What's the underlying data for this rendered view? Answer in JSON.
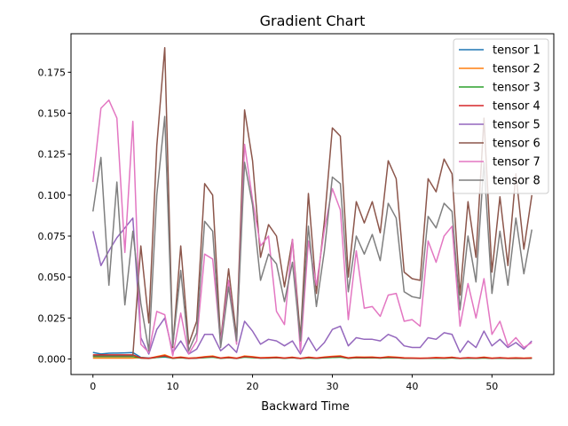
{
  "chart_data": {
    "type": "line",
    "title": "Gradient Chart",
    "xlabel": "Backward Time",
    "ylabel": "",
    "xlim": [
      -2.75,
      57.75
    ],
    "ylim": [
      -0.0095,
      0.1985
    ],
    "xticks": [
      0,
      10,
      20,
      30,
      40,
      50
    ],
    "xtick_labels": [
      "0",
      "10",
      "20",
      "30",
      "40",
      "50"
    ],
    "yticks": [
      0.0,
      0.025,
      0.05,
      0.075,
      0.1,
      0.125,
      0.15,
      0.175
    ],
    "ytick_labels": [
      "0.000",
      "0.025",
      "0.050",
      "0.075",
      "0.100",
      "0.125",
      "0.150",
      "0.175"
    ],
    "grid": false,
    "legend_position": "top-right",
    "x": [
      0,
      1,
      2,
      3,
      4,
      5,
      6,
      7,
      8,
      9,
      10,
      11,
      12,
      13,
      14,
      15,
      16,
      17,
      18,
      19,
      20,
      21,
      22,
      23,
      24,
      25,
      26,
      27,
      28,
      29,
      30,
      31,
      32,
      33,
      34,
      35,
      36,
      37,
      38,
      39,
      40,
      41,
      42,
      43,
      44,
      45,
      46,
      47,
      48,
      49,
      50,
      51,
      52,
      53,
      54,
      55
    ],
    "series": [
      {
        "name": "tensor 1",
        "color": "#1f77b4",
        "values": [
          0.004,
          0.003,
          0.0035,
          0.0036,
          0.0037,
          0.0039,
          0.001,
          0.0006,
          0.0009,
          0.0012,
          0.0005,
          0.0008,
          0.0004,
          0.0005,
          0.0009,
          0.0012,
          0.0005,
          0.0009,
          0.0004,
          0.0012,
          0.0009,
          0.0005,
          0.0006,
          0.0008,
          0.0005,
          0.0008,
          0.0003,
          0.0007,
          0.0004,
          0.0008,
          0.0009,
          0.0012,
          0.0005,
          0.0008,
          0.0007,
          0.0008,
          0.0006,
          0.0009,
          0.0007,
          0.0005,
          0.0004,
          0.0004,
          0.0004,
          0.0006,
          0.0005,
          0.0007,
          0.0004,
          0.0005,
          0.0004,
          0.0007,
          0.0004,
          0.0005,
          0.0004,
          0.0005,
          0.0004,
          0.0005
        ]
      },
      {
        "name": "tensor 2",
        "color": "#ff7f0e",
        "values": [
          0.0005,
          0.0005,
          0.0005,
          0.0005,
          0.0005,
          0.0005,
          0.0008,
          0.0004,
          0.0015,
          0.0025,
          0.0006,
          0.0012,
          0.0005,
          0.0008,
          0.0014,
          0.0018,
          0.0006,
          0.0012,
          0.0005,
          0.0018,
          0.0014,
          0.0008,
          0.0009,
          0.0011,
          0.0006,
          0.0011,
          0.0004,
          0.0011,
          0.0006,
          0.0012,
          0.0016,
          0.0019,
          0.0007,
          0.0012,
          0.0011,
          0.0012,
          0.0008,
          0.0014,
          0.0011,
          0.0007,
          0.0006,
          0.0005,
          0.0006,
          0.0009,
          0.0007,
          0.0011,
          0.0004,
          0.0008,
          0.0006,
          0.0011,
          0.0005,
          0.0008,
          0.0005,
          0.0007,
          0.0005,
          0.0007
        ]
      },
      {
        "name": "tensor 3",
        "color": "#2ca02c",
        "values": [
          0.0015,
          0.0015,
          0.0015,
          0.0015,
          0.0015,
          0.0015,
          0.0005,
          0.0003,
          0.0009,
          0.0016,
          0.0004,
          0.0007,
          0.0003,
          0.0005,
          0.0008,
          0.0011,
          0.0004,
          0.0007,
          0.0003,
          0.0011,
          0.0008,
          0.0005,
          0.0005,
          0.0007,
          0.0004,
          0.0007,
          0.0003,
          0.0006,
          0.0004,
          0.0007,
          0.0009,
          0.0011,
          0.0004,
          0.0007,
          0.0006,
          0.0007,
          0.0005,
          0.0008,
          0.0007,
          0.0004,
          0.0004,
          0.0003,
          0.0004,
          0.0005,
          0.0004,
          0.0006,
          0.0003,
          0.0005,
          0.0004,
          0.0006,
          0.0003,
          0.0005,
          0.0003,
          0.0004,
          0.0003,
          0.0004
        ]
      },
      {
        "name": "tensor 4",
        "color": "#d62728",
        "values": [
          0.0025,
          0.0025,
          0.0025,
          0.0025,
          0.0025,
          0.0025,
          0.0006,
          0.0004,
          0.0012,
          0.002,
          0.0005,
          0.001,
          0.0004,
          0.0006,
          0.0011,
          0.0015,
          0.0005,
          0.0009,
          0.0004,
          0.0015,
          0.0011,
          0.0006,
          0.0007,
          0.0009,
          0.0005,
          0.0009,
          0.0003,
          0.0009,
          0.0005,
          0.001,
          0.0013,
          0.0016,
          0.0006,
          0.001,
          0.0009,
          0.001,
          0.0007,
          0.0011,
          0.0009,
          0.0006,
          0.0005,
          0.0004,
          0.0005,
          0.0007,
          0.0006,
          0.0009,
          0.0004,
          0.0007,
          0.0005,
          0.0009,
          0.0004,
          0.0007,
          0.0004,
          0.0006,
          0.0004,
          0.0006
        ]
      },
      {
        "name": "tensor 5",
        "color": "#9467bd",
        "values": [
          0.078,
          0.057,
          0.066,
          0.074,
          0.08,
          0.086,
          0.013,
          0.003,
          0.018,
          0.025,
          0.004,
          0.011,
          0.003,
          0.006,
          0.015,
          0.015,
          0.005,
          0.009,
          0.004,
          0.023,
          0.017,
          0.009,
          0.012,
          0.011,
          0.008,
          0.011,
          0.003,
          0.013,
          0.005,
          0.01,
          0.018,
          0.02,
          0.008,
          0.013,
          0.012,
          0.012,
          0.011,
          0.015,
          0.013,
          0.008,
          0.007,
          0.007,
          0.013,
          0.012,
          0.016,
          0.015,
          0.004,
          0.011,
          0.007,
          0.017,
          0.008,
          0.012,
          0.007,
          0.01,
          0.006,
          0.011
        ]
      },
      {
        "name": "tensor 6",
        "color": "#8c564b",
        "values": [
          0.002,
          0.002,
          0.002,
          0.002,
          0.002,
          0.002,
          0.069,
          0.022,
          0.13,
          0.19,
          0.007,
          0.069,
          0.009,
          0.023,
          0.107,
          0.1,
          0.011,
          0.055,
          0.013,
          0.152,
          0.121,
          0.062,
          0.082,
          0.075,
          0.044,
          0.073,
          0.013,
          0.101,
          0.04,
          0.084,
          0.141,
          0.136,
          0.05,
          0.096,
          0.083,
          0.096,
          0.077,
          0.121,
          0.11,
          0.053,
          0.049,
          0.048,
          0.11,
          0.102,
          0.122,
          0.113,
          0.039,
          0.096,
          0.062,
          0.147,
          0.053,
          0.099,
          0.057,
          0.113,
          0.067,
          0.1
        ]
      },
      {
        "name": "tensor 7",
        "color": "#e377c2",
        "values": [
          0.108,
          0.153,
          0.158,
          0.147,
          0.065,
          0.145,
          0.009,
          0.004,
          0.029,
          0.027,
          0.002,
          0.028,
          0.003,
          0.011,
          0.064,
          0.061,
          0.01,
          0.048,
          0.009,
          0.131,
          0.097,
          0.069,
          0.075,
          0.029,
          0.021,
          0.073,
          0.004,
          0.072,
          0.045,
          0.079,
          0.104,
          0.091,
          0.024,
          0.066,
          0.031,
          0.032,
          0.026,
          0.039,
          0.04,
          0.023,
          0.024,
          0.02,
          0.072,
          0.059,
          0.075,
          0.081,
          0.02,
          0.046,
          0.025,
          0.049,
          0.015,
          0.023,
          0.008,
          0.013,
          0.007,
          0.01
        ]
      },
      {
        "name": "tensor 8",
        "color": "#7f7f7f",
        "values": [
          0.09,
          0.123,
          0.045,
          0.108,
          0.033,
          0.078,
          0.034,
          0.005,
          0.1,
          0.148,
          0.008,
          0.054,
          0.005,
          0.016,
          0.084,
          0.078,
          0.007,
          0.044,
          0.011,
          0.12,
          0.094,
          0.048,
          0.064,
          0.058,
          0.035,
          0.059,
          0.011,
          0.081,
          0.032,
          0.066,
          0.111,
          0.107,
          0.041,
          0.075,
          0.064,
          0.076,
          0.06,
          0.095,
          0.086,
          0.041,
          0.038,
          0.037,
          0.087,
          0.08,
          0.095,
          0.09,
          0.03,
          0.075,
          0.047,
          0.12,
          0.04,
          0.078,
          0.045,
          0.086,
          0.052,
          0.079
        ]
      }
    ]
  }
}
